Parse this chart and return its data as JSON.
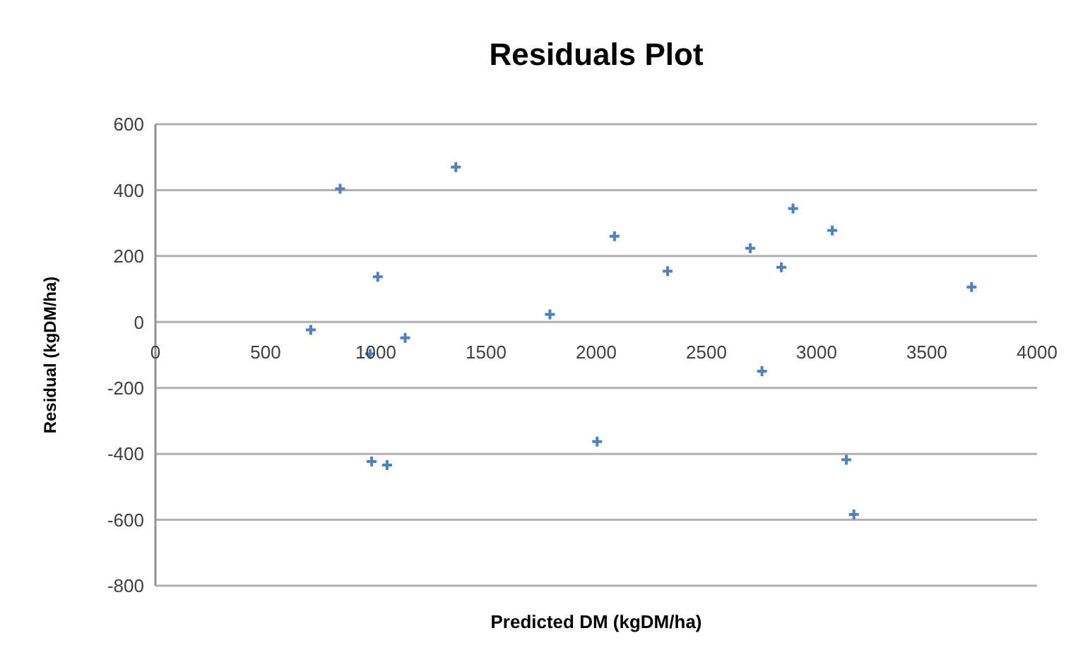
{
  "chart_data": {
    "type": "scatter",
    "title": "Residuals Plot",
    "xlabel": "Predicted DM (kgDM/ha)",
    "ylabel": "Residual  (kgDM/ha)",
    "series": [
      {
        "color": "#4f81bd",
        "x": [
          705,
          838,
          1363,
          1009,
          1790,
          1133,
          974,
          981,
          1051,
          2083,
          2004,
          2324,
          2699,
          2752,
          2840,
          2893,
          3071,
          3135,
          3169,
          3703
        ],
        "values": [
          -24,
          404,
          470,
          137,
          23,
          -48,
          -97,
          -423,
          -434,
          260,
          -363,
          154,
          224,
          -149,
          166,
          344,
          278,
          -418,
          -584,
          106
        ]
      }
    ],
    "xlim": [
      0,
      4000
    ],
    "xticks": [
      0,
      500,
      1000,
      1500,
      2000,
      2500,
      3000,
      3500,
      4000
    ],
    "ylim": [
      -800,
      600
    ],
    "yticks": [
      -800,
      -600,
      -400,
      -200,
      0,
      200,
      400,
      600
    ],
    "grid": "y",
    "marker": "cross"
  }
}
